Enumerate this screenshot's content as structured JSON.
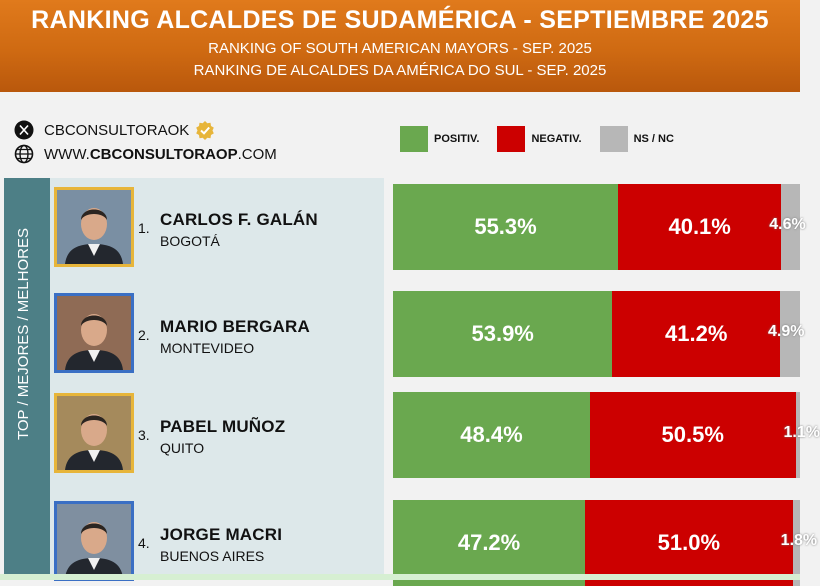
{
  "header": {
    "title": "RANKING ALCALDES DE SUDAMÉRICA - SEPTIEMBRE 2025",
    "subtitle_en": "RANKING OF SOUTH AMERICAN MAYORS - SEP. 2025",
    "subtitle_pt": "RANKING DE ALCALDES DA AMÉRICA DO SUL - SEP. 2025"
  },
  "info": {
    "x_handle": "CBCONSULTORAOK",
    "website_prefix": "WWW.",
    "website_bold": "CBCONSULTORAOP",
    "website_suffix": ".COM"
  },
  "legend": [
    {
      "label": "POSITIV.",
      "color": "#6aa84f"
    },
    {
      "label": "NEGATIV.",
      "color": "#cc0000"
    },
    {
      "label": "NS / NC",
      "color": "#b7b7b7"
    }
  ],
  "sidebar_label": "TOP / MEJORES / MELHORES",
  "chart_data": {
    "type": "bar",
    "orientation": "horizontal-stacked",
    "categories": [
      "CARLOS F. GALÁN",
      "MARIO BERGARA",
      "PABEL MUÑOZ",
      "JORGE MACRI"
    ],
    "series": [
      {
        "name": "POSITIV.",
        "values": [
          55.3,
          53.9,
          48.4,
          47.2
        ],
        "color": "#6aa84f"
      },
      {
        "name": "NEGATIV.",
        "values": [
          40.1,
          41.2,
          50.5,
          51.0
        ],
        "color": "#cc0000"
      },
      {
        "name": "NS / NC",
        "values": [
          4.6,
          4.9,
          1.1,
          1.8
        ],
        "color": "#b7b7b7"
      }
    ],
    "xlim": [
      0,
      100
    ]
  },
  "mayors": [
    {
      "rank": "1.",
      "name": "CARLOS F. GALÁN",
      "city": "BOGOTÁ",
      "positive": "55.3%",
      "negative": "40.1%",
      "ns": "4.6%",
      "frame": "gold"
    },
    {
      "rank": "2.",
      "name": "MARIO BERGARA",
      "city": "MONTEVIDEO",
      "positive": "53.9%",
      "negative": "41.2%",
      "ns": "4.9%",
      "frame": "blue"
    },
    {
      "rank": "3.",
      "name": "PABEL MUÑOZ",
      "city": "QUITO",
      "positive": "48.4%",
      "negative": "50.5%",
      "ns": "1.1%",
      "frame": "gold"
    },
    {
      "rank": "4.",
      "name": "JORGE MACRI",
      "city": "BUENOS AIRES",
      "positive": "47.2%",
      "negative": "51.0%",
      "ns": "1.8%",
      "frame": "blue"
    }
  ]
}
